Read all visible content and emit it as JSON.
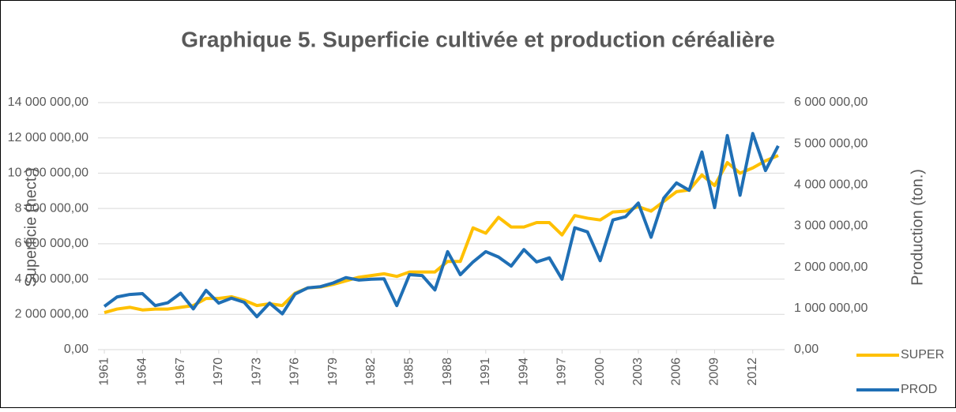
{
  "chart_data": {
    "type": "line",
    "title": "Graphique 5. Superficie cultivée et production céréalière",
    "ylabel": "Superficie (hect.)",
    "y2label": "Production (ton.)",
    "x": [
      1961,
      1962,
      1963,
      1964,
      1965,
      1966,
      1967,
      1968,
      1969,
      1970,
      1971,
      1972,
      1973,
      1974,
      1975,
      1976,
      1977,
      1978,
      1979,
      1980,
      1981,
      1982,
      1983,
      1984,
      1985,
      1986,
      1987,
      1988,
      1989,
      1990,
      1991,
      1992,
      1993,
      1994,
      1995,
      1996,
      1997,
      1998,
      1999,
      2000,
      2001,
      2002,
      2003,
      2004,
      2005,
      2006,
      2007,
      2008,
      2009,
      2010,
      2011,
      2012,
      2013,
      2014
    ],
    "xlim": [
      1960.5,
      2014.5
    ],
    "xticks": [
      1961,
      1964,
      1967,
      1970,
      1973,
      1976,
      1979,
      1982,
      1985,
      1988,
      1991,
      1994,
      1997,
      2000,
      2003,
      2006,
      2009,
      2012
    ],
    "ylim": [
      0,
      14000000
    ],
    "yticks": [
      {
        "value": 0,
        "label": "0,00"
      },
      {
        "value": 2000000,
        "label": "2 000 000,00"
      },
      {
        "value": 4000000,
        "label": "4 000 000,00"
      },
      {
        "value": 6000000,
        "label": "6 000 000,00"
      },
      {
        "value": 8000000,
        "label": "8 000 000,00"
      },
      {
        "value": 10000000,
        "label": "10 000 000,00"
      },
      {
        "value": 12000000,
        "label": "12 000 000,00"
      },
      {
        "value": 14000000,
        "label": "14 000 000,00"
      }
    ],
    "y2lim": [
      0,
      6000000
    ],
    "y2ticks": [
      {
        "value": 0,
        "label": "0,00"
      },
      {
        "value": 1000000,
        "label": "1 000 000,00"
      },
      {
        "value": 2000000,
        "label": "2 000 000,00"
      },
      {
        "value": 3000000,
        "label": "3 000 000,00"
      },
      {
        "value": 4000000,
        "label": "4 000 000,00"
      },
      {
        "value": 5000000,
        "label": "5 000 000,00"
      },
      {
        "value": 6000000,
        "label": "6 000 000,00"
      }
    ],
    "grid": true,
    "legend": "bottom-right",
    "series": [
      {
        "name": "SUPER",
        "color": "#ffc000",
        "values": [
          2100000,
          2300000,
          2400000,
          2250000,
          2300000,
          2300000,
          2400000,
          2500000,
          2900000,
          2900000,
          3000000,
          2800000,
          2500000,
          2600000,
          2500000,
          3200000,
          3500000,
          3550000,
          3700000,
          3900000,
          4100000,
          4200000,
          4300000,
          4150000,
          4400000,
          4400000,
          4400000,
          5000000,
          5000000,
          6900000,
          6600000,
          7500000,
          6950000,
          6950000,
          7200000,
          7200000,
          6500000,
          7600000,
          7450000,
          7350000,
          7800000,
          7850000,
          8100000,
          7850000,
          8400000,
          8950000,
          9050000,
          9900000,
          9300000,
          10600000,
          10000000,
          10300000,
          10700000,
          11000000
        ]
      },
      {
        "name": "PROD",
        "color": "#1f6fb5",
        "axis": "y2",
        "values": [
          1050000,
          1280000,
          1340000,
          1360000,
          1070000,
          1140000,
          1370000,
          990000,
          1440000,
          1130000,
          1250000,
          1150000,
          800000,
          1130000,
          870000,
          1350000,
          1500000,
          1530000,
          1620000,
          1750000,
          1690000,
          1710000,
          1720000,
          1070000,
          1820000,
          1800000,
          1450000,
          2380000,
          1820000,
          2130000,
          2380000,
          2250000,
          2030000,
          2430000,
          2130000,
          2230000,
          1710000,
          2960000,
          2860000,
          2160000,
          3150000,
          3230000,
          3560000,
          2730000,
          3680000,
          4050000,
          3870000,
          4800000,
          3450000,
          5200000,
          3750000,
          5250000,
          4350000,
          4950000
        ]
      }
    ]
  }
}
